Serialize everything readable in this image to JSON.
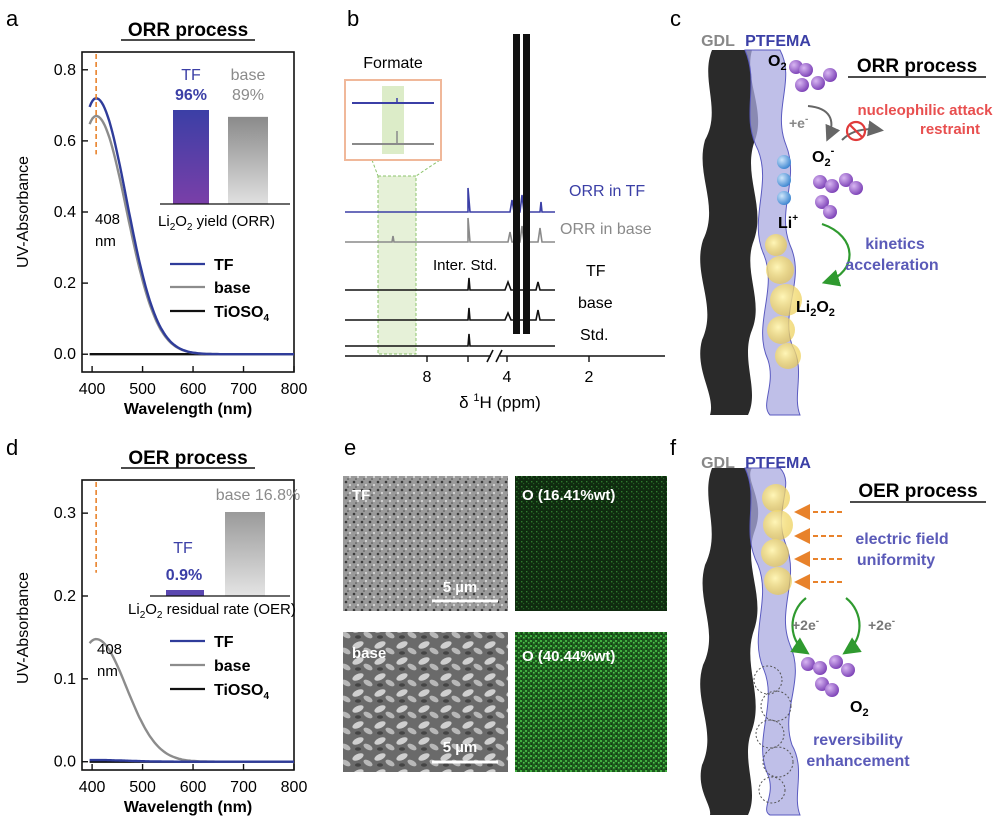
{
  "panel_labels": {
    "a": "a",
    "b": "b",
    "c": "c",
    "d": "d",
    "e": "e",
    "f": "f"
  },
  "panel_a": {
    "title": "ORR process",
    "ylabel": "UV-Absorbance",
    "xlabel": "Wavelength (nm)",
    "peak_label_1": "408",
    "peak_label_2": "nm",
    "inset": {
      "tf_label": "TF",
      "tf_value": "96%",
      "base_label": "base",
      "base_value": "89%",
      "caption_pre": "Li",
      "caption_sub1": "2",
      "caption_mid": "O",
      "caption_sub2": "2",
      "caption_post": " yield (ORR)"
    },
    "legend": [
      {
        "label": "TF",
        "color": "#2f3c9a"
      },
      {
        "label": "base",
        "color": "#8c8c8c"
      },
      {
        "label_pre": "TiOSO",
        "label_sub": "4",
        "color": "#111111"
      }
    ]
  },
  "panel_d": {
    "title": "OER process",
    "ylabel": "UV-Absorbance",
    "xlabel": "Wavelength (nm)",
    "peak_label_1": "408",
    "peak_label_2": "nm",
    "inset": {
      "tf_label": "TF",
      "tf_value": "0.9%",
      "base_text": "base 16.8%",
      "caption_pre": "Li",
      "caption_sub1": "2",
      "caption_mid": "O",
      "caption_sub2": "2",
      "caption_post": " residual rate (OER)"
    },
    "legend": [
      {
        "label": "TF",
        "color": "#2f3c9a"
      },
      {
        "label": "base",
        "color": "#8c8c8c"
      },
      {
        "label_pre": "TiOSO",
        "label_sub": "4",
        "color": "#111111"
      }
    ]
  },
  "chart_data": [
    {
      "type": "line",
      "id": "a",
      "title": "ORR process",
      "xlabel": "Wavelength (nm)",
      "ylabel": "UV-Absorbance",
      "xlim": [
        380,
        800
      ],
      "ylim": [
        -0.05,
        0.85
      ],
      "xticks": [
        400,
        500,
        600,
        700,
        800
      ],
      "yticks": [
        0.0,
        0.2,
        0.4,
        0.6,
        0.8
      ],
      "ytick_labels": [
        "0.0",
        "0.2",
        "0.4",
        "0.6",
        "0.8"
      ],
      "annotation": {
        "x": 408,
        "text": "408 nm"
      },
      "series": [
        {
          "name": "TF",
          "color": "#2f3c9a",
          "peak": 0.72
        },
        {
          "name": "base",
          "color": "#8c8c8c",
          "peak": 0.67
        },
        {
          "name": "TiOSO4",
          "color": "#111111",
          "peak": 0.0
        }
      ],
      "inset_bars": {
        "categories": [
          "TF",
          "base"
        ],
        "values": [
          96,
          89
        ],
        "unit": "%",
        "caption": "Li2O2 yield (ORR)"
      }
    },
    {
      "type": "line",
      "id": "d",
      "title": "OER process",
      "xlabel": "Wavelength (nm)",
      "ylabel": "UV-Absorbance",
      "xlim": [
        380,
        800
      ],
      "ylim": [
        -0.01,
        0.34
      ],
      "xticks": [
        400,
        500,
        600,
        700,
        800
      ],
      "yticks": [
        0.0,
        0.1,
        0.2,
        0.3
      ],
      "ytick_labels": [
        "0.0",
        "0.1",
        "0.2",
        "0.3"
      ],
      "annotation": {
        "x": 408,
        "text": "408 nm"
      },
      "series": [
        {
          "name": "TF",
          "color": "#2f3c9a",
          "peak": 0.002
        },
        {
          "name": "base",
          "color": "#8c8c8c",
          "peak": 0.148
        },
        {
          "name": "TiOSO4",
          "color": "#111111",
          "peak": 0.0
        }
      ],
      "inset_bars": {
        "categories": [
          "TF",
          "base"
        ],
        "values": [
          0.9,
          16.8
        ],
        "unit": "%",
        "caption": "Li2O2 residual rate (OER)"
      }
    },
    {
      "type": "line",
      "id": "b",
      "title": "",
      "xlabel": "δ 1H (ppm)",
      "ylabel": "",
      "xticks": [
        8,
        4,
        2
      ],
      "series": [
        {
          "name": "ORR in TF",
          "color": "#2f3c9a"
        },
        {
          "name": "ORR in base",
          "color": "#8c8c8c"
        },
        {
          "name": "TF",
          "color": "#111111"
        },
        {
          "name": "base",
          "color": "#111111"
        },
        {
          "name": "Std.",
          "color": "#111111"
        }
      ]
    }
  ],
  "panel_b": {
    "xlabel_pre": "δ ",
    "xlabel_sup": "1",
    "xlabel_post": "H  (ppm)",
    "tick_labels": [
      "8",
      "4",
      "2"
    ],
    "inset_title": "Formate",
    "internal_std": "Inter. Std.",
    "trace_labels": [
      "ORR in TF",
      "ORR in base",
      "TF",
      "base",
      "Std."
    ]
  },
  "panel_c": {
    "gdl": "GDL",
    "ptfema": "PTFEMA",
    "o2_pre": "O",
    "o2_sub": "2",
    "title": "ORR process",
    "electron": "+e",
    "electron_sup": "-",
    "nucleo_line1": "nucleophilic attack",
    "nucleo_line2": "restraint",
    "superoxide_pre": "O",
    "superoxide_sub": "2",
    "superoxide_sup": "-",
    "li_pre": "Li",
    "li_sup": "+",
    "kinetics_line1": "kinetics",
    "kinetics_line2": "acceleration",
    "li2o2_parts": [
      "Li",
      "2",
      "O",
      "2"
    ]
  },
  "panel_e": {
    "tf_label": "TF",
    "tf_oxygen": "O (16.41%wt)",
    "base_label": "base",
    "base_oxygen": "O (40.44%wt)",
    "scale_top": "5 µm",
    "scale_bottom": "5 µm"
  },
  "panel_f": {
    "gdl": "GDL",
    "ptfema": "PTFEMA",
    "title": "OER process",
    "field_line1": "electric field",
    "field_line2": "uniformity",
    "two_e_left": "+2e",
    "two_e_right": "+2e",
    "two_e_sup": "-",
    "o2_pre": "O",
    "o2_sub": "2",
    "rev_line1": "reversibility",
    "rev_line2": "enhancement"
  }
}
